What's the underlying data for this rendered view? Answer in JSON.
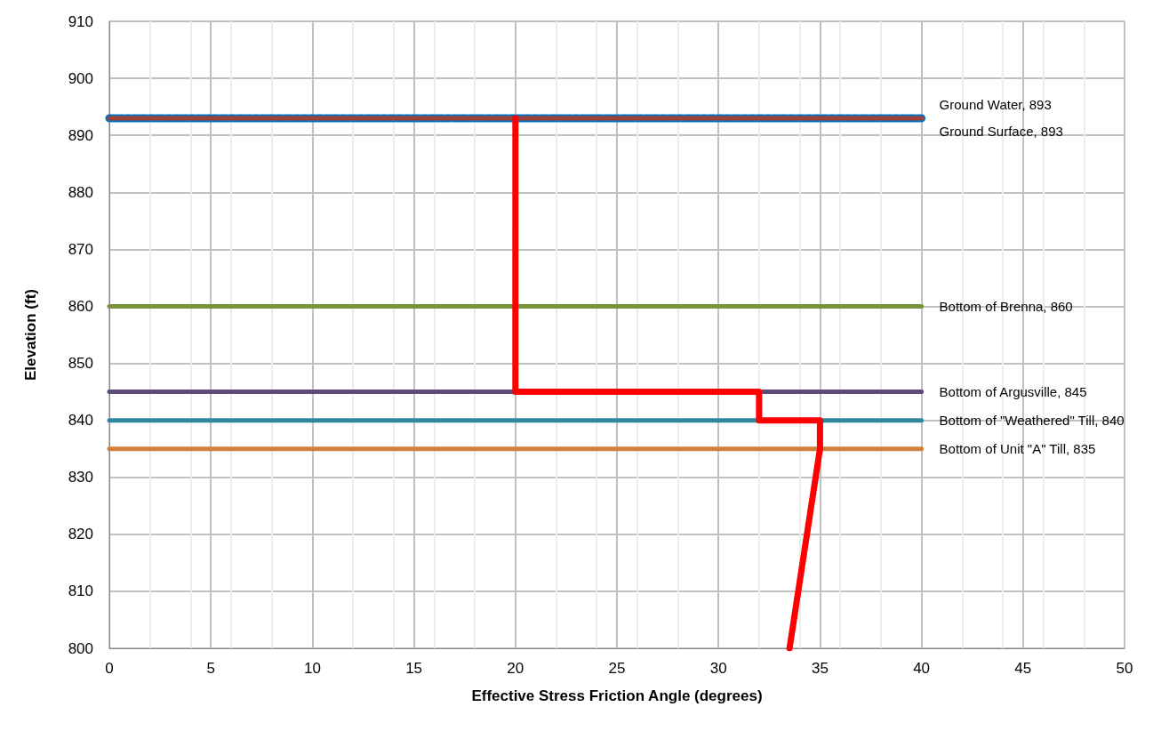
{
  "chart_data": {
    "type": "line",
    "xlabel": "Effective Stress Friction Angle (degrees)",
    "ylabel": "Elevation (ft)",
    "xlim": [
      0,
      50
    ],
    "xticks": [
      0,
      5,
      10,
      15,
      20,
      25,
      30,
      35,
      40,
      45,
      50
    ],
    "ylim": [
      800,
      910
    ],
    "yticks": [
      800,
      810,
      820,
      830,
      840,
      850,
      860,
      870,
      880,
      890,
      900,
      910
    ],
    "grid": true,
    "marker": "none",
    "series": [
      {
        "color": "#0070c0",
        "x": [
          0,
          40
        ],
        "values": [
          893,
          893
        ],
        "line_style": "dashed"
      },
      {
        "color": "#a0403a",
        "x": [
          0,
          40
        ],
        "values": [
          893,
          893
        ],
        "line_style": "solid"
      },
      {
        "color": "#77933c",
        "x": [
          0,
          40
        ],
        "values": [
          860,
          860
        ],
        "line_style": "solid"
      },
      {
        "color": "#604a7b",
        "x": [
          0,
          40
        ],
        "values": [
          845,
          845
        ],
        "line_style": "solid"
      },
      {
        "color": "#31859c",
        "x": [
          0,
          40
        ],
        "values": [
          840,
          840
        ],
        "line_style": "solid"
      },
      {
        "color": "#d0803a",
        "x": [
          0,
          40
        ],
        "values": [
          835,
          835
        ],
        "line_style": "solid"
      },
      {
        "color": "#ff0000",
        "x": [
          20,
          20,
          32,
          32,
          35,
          35,
          33.5
        ],
        "values": [
          893,
          845,
          845,
          840,
          840,
          835,
          800
        ],
        "line_style": "solid"
      }
    ],
    "annotations": [
      "Ground Water, 893",
      "Ground Surface, 893",
      "Bottom of Brenna, 860",
      "Bottom of Argusville, 845",
      "Bottom of \"Weathered\" Till, 840",
      "Bottom of Unit \"A\" Till, 835"
    ]
  }
}
